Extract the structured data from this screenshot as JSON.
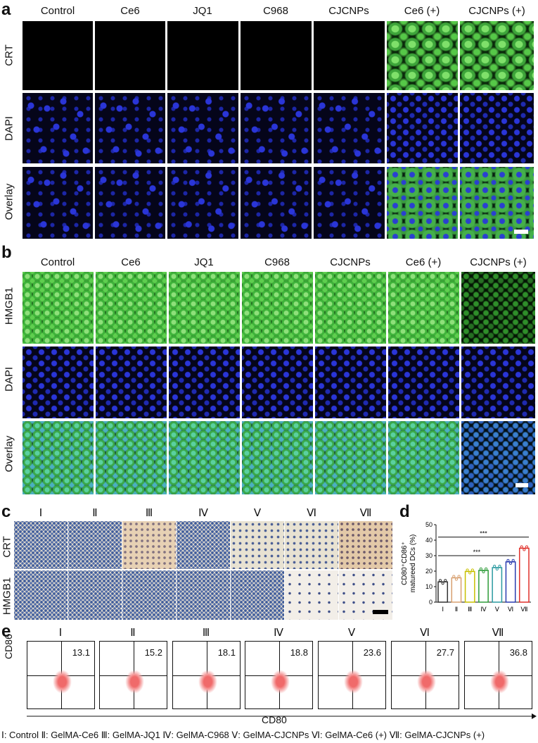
{
  "panel_a": {
    "label": "a",
    "columns": [
      "Control",
      "Ce6",
      "JQ1",
      "C968",
      "CJCNPs",
      "Ce6 (+)",
      "CJCNPs  (+)"
    ],
    "rows": [
      "CRT",
      "DAPI",
      "Overlay"
    ]
  },
  "panel_b": {
    "label": "b",
    "columns": [
      "Control",
      "Ce6",
      "JQ1",
      "C968",
      "CJCNPs",
      "Ce6 (+)",
      "CJCNPs  (+)"
    ],
    "rows": [
      "HMGB1",
      "DAPI",
      "Overlay"
    ]
  },
  "panel_c": {
    "label": "c",
    "columns": [
      "Ⅰ",
      "Ⅱ",
      "Ⅲ",
      "Ⅳ",
      "Ⅴ",
      "Ⅵ",
      "Ⅶ"
    ],
    "rows": [
      "CRT",
      "HMGB1"
    ]
  },
  "panel_d": {
    "label": "d",
    "chart_data": {
      "type": "bar",
      "categories": [
        "Ⅰ",
        "Ⅱ",
        "Ⅲ",
        "Ⅳ",
        "Ⅴ",
        "Ⅵ",
        "Ⅶ"
      ],
      "values": [
        13.1,
        15.7,
        19.8,
        20.5,
        22.3,
        26.0,
        34.8
      ],
      "ylabel_line1": "CD80⁺CD86⁺",
      "ylabel_line2": "matureed DCs (%)",
      "ylim": [
        0,
        50
      ],
      "yticks": [
        "0",
        "10",
        "20",
        "30",
        "40",
        "50"
      ],
      "significance": [
        "***",
        "***"
      ],
      "colors": [
        "#333333",
        "#d8a070",
        "#c8c000",
        "#2f9c3a",
        "#2a9aa0",
        "#2a3cb0",
        "#e0302a"
      ]
    }
  },
  "panel_e": {
    "label": "e",
    "groups": [
      "Ⅰ",
      "Ⅱ",
      "Ⅲ",
      "Ⅳ",
      "Ⅴ",
      "Ⅵ",
      "Ⅶ"
    ],
    "values": [
      "13.1",
      "15.2",
      "18.1",
      "18.8",
      "23.6",
      "27.7",
      "36.8"
    ],
    "ylabel": "CD86",
    "xlabel": "CD80"
  },
  "legend": "Ⅰ: Control  Ⅱ: GelMA-Ce6  Ⅲ: GelMA-JQ1  Ⅳ: GelMA-C968  Ⅴ: GelMA-CJCNPs Ⅵ: GelMA-Ce6 (+) Ⅶ: GelMA-CJCNPs (+)"
}
